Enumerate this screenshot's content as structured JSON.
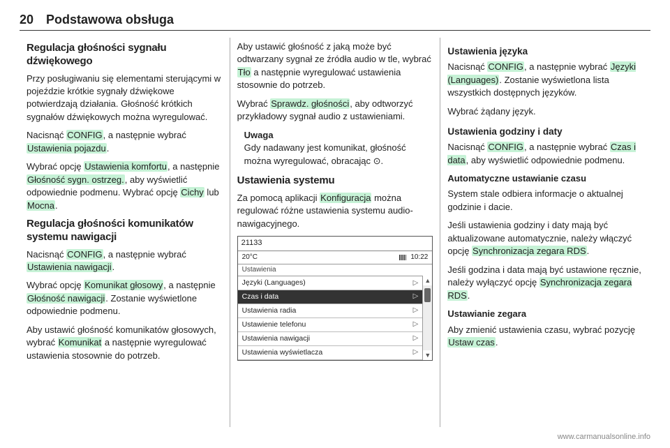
{
  "page_number": "20",
  "page_title": "Podstawowa obsługa",
  "col1": {
    "h2_1": "Regulacja głośności sygnału dźwiękowego",
    "p1": "Przy posługiwaniu się elementami sterującymi w pojeździe krótkie sygnały dźwiękowe potwierdzają działania. Głośność krótkich sygnałów dźwiękowych można wyregulować.",
    "p2a": "Nacisnąć ",
    "p2_hl1": "CONFIG",
    "p2b": ", a następnie wybrać ",
    "p2_hl2": "Ustawienia pojazdu",
    "p2c": ".",
    "p3a": "Wybrać opcję ",
    "p3_hl1": "Ustawienia komfortu",
    "p3b": ", a następnie ",
    "p3_hl2": "Głośność sygn. ostrzeg.",
    "p3c": ", aby wyświetlić odpowiednie podmenu. Wybrać opcję ",
    "p3_hl3": "Cichy",
    "p3d": " lub ",
    "p3_hl4": "Mocna",
    "p3e": ".",
    "h2_2": "Regulacja głośności komunikatów systemu nawigacji",
    "p4a": "Nacisnąć ",
    "p4_hl1": "CONFIG",
    "p4b": ", a następnie wybrać ",
    "p4_hl2": "Ustawienia nawigacji",
    "p4c": ".",
    "p5a": "Wybrać opcję ",
    "p5_hl1": "Komunikat głosowy",
    "p5b": ", a następnie ",
    "p5_hl2": "Głośność nawigacji",
    "p5c": ". Zostanie wyświetlone odpowiednie podmenu.",
    "p6a": "Aby ustawić głośność komunikatów głosowych, wybrać ",
    "p6_hl1": "Komunikat",
    "p6b": " a następnie wyregulować ustawienia stosownie do potrzeb."
  },
  "col2": {
    "p1a": "Aby ustawić głośność z jaką może być odtwarzany sygnał ze źródła audio w tle, wybrać ",
    "p1_hl1": "Tło",
    "p1b": " a następnie wyregulować ustawienia stosownie do potrzeb.",
    "p2a": "Wybrać ",
    "p2_hl1": "Sprawdz. głośności",
    "p2b": ", aby odtworzyć przykładowy sygnał audio z ustawieniami.",
    "note_lbl": "Uwaga",
    "note_txt": "Gdy nadawany jest komunikat, głośność można wyregulować, obracając ⊙.",
    "h2": "Ustawienia systemu",
    "p3a": "Za pomocą aplikacji ",
    "p3_hl1": "Konfiguracja",
    "p3b": " można regulować różne ustawienia systemu audio-nawigacyjnego.",
    "device": {
      "id": "21133",
      "temp": "20°C",
      "time": "10:22",
      "title": "Ustawienia",
      "items": [
        "Języki (Languages)",
        "Czas i data",
        "Ustawienia radia",
        "Ustawienie telefonu",
        "Ustawienia nawigacji",
        "Ustawienia wyświetlacza"
      ],
      "selected_index": 1
    }
  },
  "col3": {
    "h3_1": "Ustawienia języka",
    "p1a": "Nacisnąć ",
    "p1_hl1": "CONFIG",
    "p1b": ", a następnie wybrać ",
    "p1_hl2": "Języki (Languages)",
    "p1c": ". Zostanie wyświetlona lista wszystkich dostępnych języków.",
    "p2": "Wybrać żądany język.",
    "h3_2": "Ustawienia godziny i daty",
    "p3a": "Nacisnąć ",
    "p3_hl1": "CONFIG",
    "p3b": ", a następnie wybrać ",
    "p3_hl2": "Czas i data",
    "p3c": ", aby wyświetlić odpowiednie podmenu.",
    "sub1": "Automatyczne ustawianie czasu",
    "p4": "System stale odbiera informacje o aktualnej godzinie i dacie.",
    "p5a": "Jeśli ustawienia godziny i daty mają być aktualizowane automatycznie, należy włączyć opcję ",
    "p5_hl1": "Synchronizacja zegara RDS",
    "p5b": ".",
    "p6a": "Jeśli godzina i data mają być ustawione ręcznie, należy wyłączyć opcję ",
    "p6_hl1": "Synchronizacja zegara RDS",
    "p6b": ".",
    "sub2": "Ustawianie zegara",
    "p7a": "Aby zmienić ustawienia czasu, wybrać pozycję ",
    "p7_hl1": "Ustaw czas",
    "p7b": "."
  },
  "footer": "www.carmanualsonline.info"
}
